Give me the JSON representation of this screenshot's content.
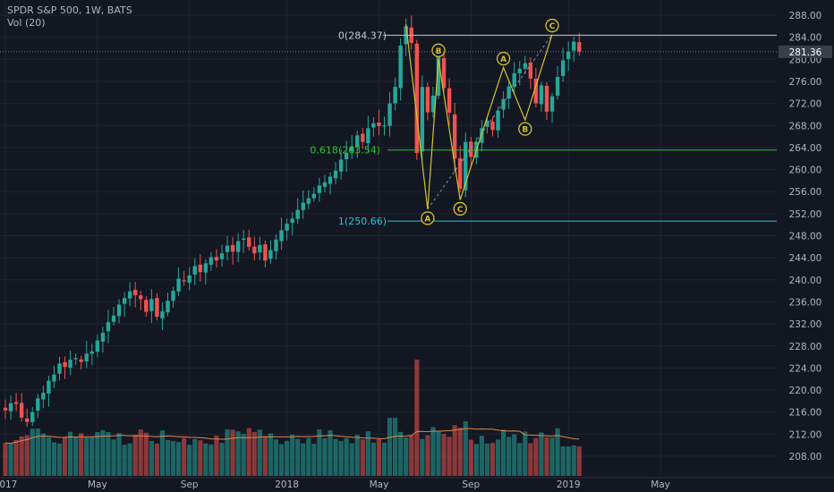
{
  "header": {
    "title": "SPDR S&P 500, 1W, BATS",
    "volume_label": "Vol (20)"
  },
  "chart_data": {
    "type": "candlestick",
    "symbol": "SPDR S&P 500",
    "interval": "1W",
    "exchange": "BATS",
    "ylim": [
      205.5,
      290.5
    ],
    "y_ticks": [
      "288.00",
      "284.00",
      "280.00",
      "276.00",
      "272.00",
      "268.00",
      "264.00",
      "260.00",
      "256.00",
      "252.00",
      "248.00",
      "244.00",
      "240.00",
      "236.00",
      "232.00",
      "228.00",
      "224.00",
      "220.00",
      "216.00",
      "212.00",
      "208.00"
    ],
    "x_ticks": [
      "2017",
      "May",
      "Sep",
      "2018",
      "May",
      "Sep",
      "2019",
      "May"
    ],
    "last_price": "281.36",
    "colors": {
      "up": "#26a69a",
      "down": "#ef5350",
      "pattern": "#d4c22c",
      "fib_0": "#c8c8c8",
      "fib_618": "#2ec42e",
      "fib_1": "#26c6da",
      "last_price": "#787b86",
      "volume_ma": "#e0884b"
    },
    "weekly_close": [
      216.3,
      217.6,
      217.5,
      215.0,
      214.2,
      216.0,
      218.5,
      219.5,
      221.7,
      222.8,
      224.8,
      224.2,
      225.5,
      225.8,
      225.1,
      226.6,
      227.0,
      229.0,
      230.4,
      232.3,
      233.5,
      235.5,
      236.7,
      237.9,
      237.2,
      236.5,
      234.2,
      236.5,
      233.3,
      234.3,
      236.2,
      238.0,
      240.2,
      239.7,
      240.8,
      242.5,
      241.4,
      243.0,
      244.1,
      243.5,
      244.8,
      246.2,
      245.1,
      247.0,
      247.5,
      246.0,
      244.8,
      246.3,
      243.5,
      245.4,
      247.3,
      249.0,
      250.2,
      251.1,
      252.7,
      254.0,
      254.8,
      255.6,
      257.1,
      257.7,
      258.7,
      259.8,
      261.8,
      263.0,
      264.2,
      266.2,
      265.0,
      267.5,
      268.4,
      267.9,
      268.0,
      272.0,
      275.0,
      282.5,
      286.0,
      283.0,
      263.0,
      275.0,
      270.4,
      273.4,
      280.5,
      274.8,
      270.3,
      262.0,
      256.5,
      265.0,
      262.3,
      265.0,
      267.5,
      268.9,
      267.2,
      270.7,
      272.8,
      275.1,
      277.5,
      278.3,
      279.3,
      276.5,
      272.0,
      275.3,
      270.5,
      273.3,
      276.8,
      279.8,
      281.4,
      283.2,
      281.4
    ],
    "weekly_open_first": 216.8,
    "volume_ma_note": "orange moving average over volume",
    "fibonacci": [
      {
        "level": "0",
        "price": 284.37,
        "label": "0(284.37)"
      },
      {
        "level": "0.618",
        "price": 263.54,
        "label": "0.618(263.54)"
      },
      {
        "level": "1",
        "price": 250.66,
        "label": "1(250.66)"
      }
    ],
    "wave_labels": [
      "B",
      "A",
      "C",
      "A",
      "B",
      "C"
    ],
    "x_tick_weeks": [
      0,
      17,
      34,
      52,
      69,
      86,
      104,
      121
    ],
    "wave_points": [
      {
        "label": "",
        "week": 74,
        "price": 286.4
      },
      {
        "label": "A",
        "week": 78,
        "price": 252.8
      },
      {
        "label": "B",
        "week": 80,
        "price": 280.0
      },
      {
        "label": "C",
        "week": 84,
        "price": 254.5
      },
      {
        "label": "A",
        "week": 92,
        "price": 278.5
      },
      {
        "label": "B",
        "week": 96,
        "price": 269.0
      },
      {
        "label": "C",
        "week": 101,
        "price": 284.5
      }
    ]
  }
}
